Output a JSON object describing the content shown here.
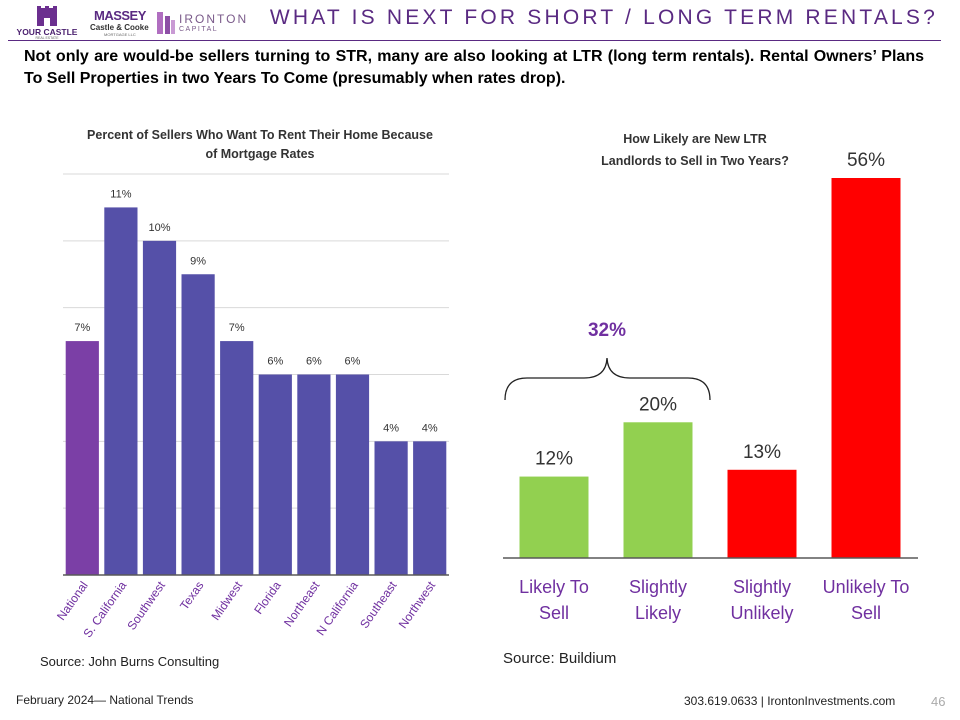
{
  "header": {
    "logo1_line1": "YOUR CASTLE",
    "logo1_line2": "REAL ESTATE",
    "logo2_line1": "MASSEY",
    "logo2_line2": "Castle & Cooke",
    "logo2_line3": "MORTGAGE LLC",
    "logo3_line1": "IRONTON",
    "logo3_line2": "CAPITAL",
    "title": "WHAT IS NEXT FOR SHORT / LONG TERM RENTALS?",
    "accent_color": "#5a2a82"
  },
  "subtitle": "Not only are would-be sellers turning to STR, many are also looking at LTR (long term rentals). Rental Owners’ Plans To Sell Properties in two Years To Come (presumably when rates drop).",
  "left_chart": {
    "title_line1": "Percent of Sellers Who Want To Rent Their Home Because",
    "title_line2": "of Mortgage Rates",
    "source": "Source: John Burns Consulting"
  },
  "right_chart": {
    "title_line1": "How Likely are New LTR",
    "title_line2": "Landlords to Sell in Two Years?",
    "bracket_label": "32%",
    "source": "Source: Buildium"
  },
  "chart_data": [
    {
      "type": "bar",
      "title": "Percent of Sellers Who Want To Rent Their Home Because of Mortgage Rates",
      "categories": [
        "National",
        "S. California",
        "Southwest",
        "Texas",
        "Midwest",
        "Florida",
        "Northeast",
        "N California",
        "Southeast",
        "Northwest"
      ],
      "values": [
        7,
        11,
        10,
        9,
        7,
        6,
        6,
        6,
        4,
        4
      ],
      "labels": [
        "7%",
        "11%",
        "10%",
        "9%",
        "7%",
        "6%",
        "6%",
        "6%",
        "4%",
        "4%"
      ],
      "colors": [
        "#7b3fa6",
        "#5550a8",
        "#5550a8",
        "#5550a8",
        "#5550a8",
        "#5550a8",
        "#5550a8",
        "#5550a8",
        "#5550a8",
        "#5550a8"
      ],
      "ylim": [
        0,
        12
      ],
      "grid": true
    },
    {
      "type": "bar",
      "title": "How Likely are New LTR Landlords to Sell in Two Years?",
      "categories": [
        "Likely To Sell",
        "Slightly Likely",
        "Slightly Unlikely",
        "Unlikely To Sell"
      ],
      "category_lines": [
        [
          "Likely To",
          "Sell"
        ],
        [
          "Slightly",
          "Likely"
        ],
        [
          "Slightly",
          "Unlikely"
        ],
        [
          "Unlikely To",
          "Sell"
        ]
      ],
      "values": [
        12,
        20,
        13,
        56
      ],
      "labels": [
        "12%",
        "20%",
        "13%",
        "56%"
      ],
      "colors": [
        "#92d050",
        "#92d050",
        "#ff0000",
        "#ff0000"
      ],
      "ylim": [
        0,
        56
      ],
      "grid": false
    }
  ],
  "footer": {
    "left": "February 2024— National Trends",
    "right": "303.619.0633 | IrontonInvestments.com",
    "page": "46"
  }
}
